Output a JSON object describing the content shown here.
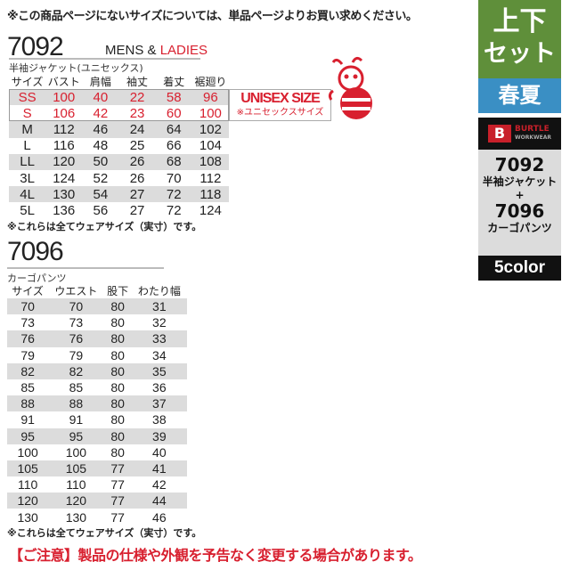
{
  "top_note": "※この商品ページにないサイズについては、単品ページよりお買い求めください。",
  "jacket": {
    "model": "7092",
    "mens": "MENS &",
    "ladies": "LADIES",
    "name": "半袖ジャケット(ユニセックス)",
    "headers": [
      "サイズ",
      "バスト",
      "肩幅",
      "袖丈",
      "着丈",
      "裾廻り"
    ],
    "rows": [
      [
        "SS",
        "100",
        "40",
        "22",
        "58",
        "96"
      ],
      [
        "S",
        "106",
        "42",
        "23",
        "60",
        "100"
      ],
      [
        "M",
        "112",
        "46",
        "24",
        "64",
        "102"
      ],
      [
        "L",
        "116",
        "48",
        "25",
        "66",
        "104"
      ],
      [
        "LL",
        "120",
        "50",
        "26",
        "68",
        "108"
      ],
      [
        "3L",
        "124",
        "52",
        "26",
        "70",
        "112"
      ],
      [
        "4L",
        "130",
        "54",
        "27",
        "72",
        "118"
      ],
      [
        "5L",
        "136",
        "56",
        "27",
        "72",
        "124"
      ]
    ],
    "unisex_title": "UNISEX SIZE",
    "unisex_sub": "※ユニセックスサイズ",
    "note": "※これらは全てウェアサイズ（実寸）です。"
  },
  "pants": {
    "model": "7096",
    "name": "カーゴパンツ",
    "headers": [
      "サイズ",
      "ウエスト",
      "股下",
      "わたり幅"
    ],
    "rows": [
      [
        "70",
        "70",
        "80",
        "31"
      ],
      [
        "73",
        "73",
        "80",
        "32"
      ],
      [
        "76",
        "76",
        "80",
        "33"
      ],
      [
        "79",
        "79",
        "80",
        "34"
      ],
      [
        "82",
        "82",
        "80",
        "35"
      ],
      [
        "85",
        "85",
        "80",
        "36"
      ],
      [
        "88",
        "88",
        "80",
        "37"
      ],
      [
        "91",
        "91",
        "80",
        "38"
      ],
      [
        "95",
        "95",
        "80",
        "39"
      ],
      [
        "100",
        "100",
        "80",
        "40"
      ],
      [
        "105",
        "105",
        "77",
        "41"
      ],
      [
        "110",
        "110",
        "77",
        "42"
      ],
      [
        "120",
        "120",
        "77",
        "44"
      ],
      [
        "130",
        "130",
        "77",
        "46"
      ]
    ],
    "note": "※これらは全てウェアサイズ（実寸）です。"
  },
  "panel": {
    "set_line1": "上下",
    "set_line2": "セット",
    "season": "春夏",
    "brand": "BURTLE",
    "brand_sub": "WORKWEAR",
    "item1_model": "7092",
    "item1_name": "半袖ジャケット",
    "plus": "+",
    "item2_model": "7096",
    "item2_name": "カーゴパンツ",
    "colors": "5color"
  },
  "bottom_notice": "【ご注意】製品の仕様や外観を予告なく変更する場合があります。",
  "colors": {
    "red": "#d8202f",
    "green": "#5f8f3a",
    "blue": "#3a8fc4",
    "gray": "#dcdcdc"
  }
}
